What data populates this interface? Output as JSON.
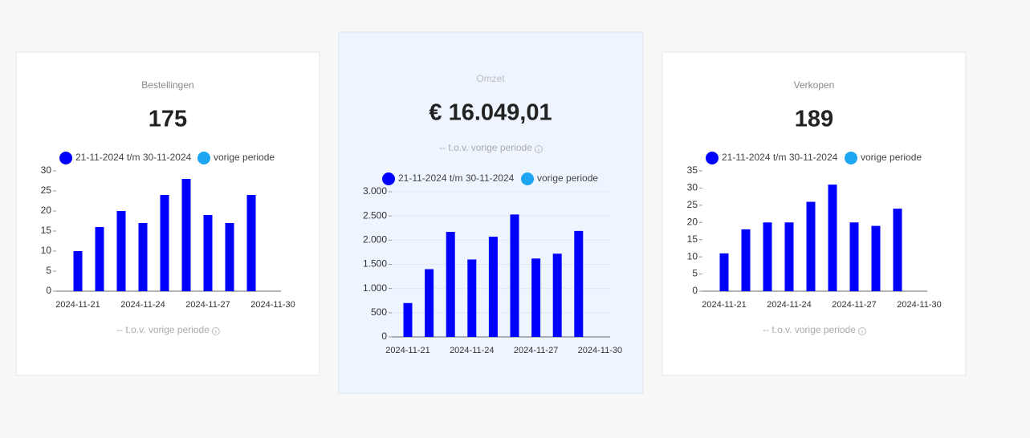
{
  "chart_data": [
    {
      "type": "bar",
      "title": "Bestellingen",
      "value": "175",
      "note": "-- t.o.v. vorige periode",
      "categories": [
        "2024-11-21",
        null,
        null,
        "2024-11-24",
        null,
        null,
        "2024-11-27",
        null,
        null,
        "2024-11-30"
      ],
      "series": [
        {
          "name": "21-11-2024 t/m 30-11-2024",
          "color": "#0000ff",
          "values": [
            10,
            16,
            20,
            17,
            24,
            28,
            19,
            17,
            24,
            null
          ]
        },
        {
          "name": "vorige periode",
          "color": "#1da6f2",
          "values": [
            null,
            null,
            null,
            null,
            null,
            null,
            null,
            null,
            null,
            null
          ]
        }
      ],
      "ylim": [
        0,
        30
      ],
      "yticks": [
        0,
        5,
        10,
        15,
        20,
        25,
        30
      ],
      "grid": false
    },
    {
      "type": "bar",
      "title": "Omzet",
      "value": "€ 16.049,01",
      "note": "-- t.o.v. vorige periode",
      "categories": [
        "2024-11-21",
        null,
        null,
        "2024-11-24",
        null,
        null,
        "2024-11-27",
        null,
        null,
        "2024-11-30"
      ],
      "series": [
        {
          "name": "21-11-2024 t/m 30-11-2024",
          "color": "#0000ff",
          "values": [
            700,
            1400,
            2170,
            1600,
            2070,
            2530,
            1620,
            1720,
            2190,
            null
          ]
        },
        {
          "name": "vorige periode",
          "color": "#1da6f2",
          "values": [
            null,
            null,
            null,
            null,
            null,
            null,
            null,
            null,
            null,
            null
          ]
        }
      ],
      "ylim": [
        0,
        3000
      ],
      "yticks": [
        0,
        500,
        {
          "value": 1000,
          "label": "1.000"
        },
        {
          "value": 1500,
          "label": "1.500"
        },
        {
          "value": 2000,
          "label": "2.000"
        },
        {
          "value": 2500,
          "label": "2.500"
        },
        {
          "value": 3000,
          "label": "3.000"
        }
      ],
      "grid": true
    },
    {
      "type": "bar",
      "title": "Verkopen",
      "value": "189",
      "note": "-- t.o.v. vorige periode",
      "categories": [
        "2024-11-21",
        null,
        null,
        "2024-11-24",
        null,
        null,
        "2024-11-27",
        null,
        null,
        "2024-11-30"
      ],
      "series": [
        {
          "name": "21-11-2024 t/m 30-11-2024",
          "color": "#0000ff",
          "values": [
            11,
            18,
            20,
            20,
            26,
            31,
            20,
            19,
            24,
            null
          ]
        },
        {
          "name": "vorige periode",
          "color": "#1da6f2",
          "values": [
            null,
            null,
            null,
            null,
            null,
            null,
            null,
            null,
            null,
            null
          ]
        }
      ],
      "ylim": [
        0,
        35
      ],
      "yticks": [
        0,
        5,
        10,
        15,
        20,
        25,
        30,
        35
      ],
      "grid": false
    }
  ]
}
